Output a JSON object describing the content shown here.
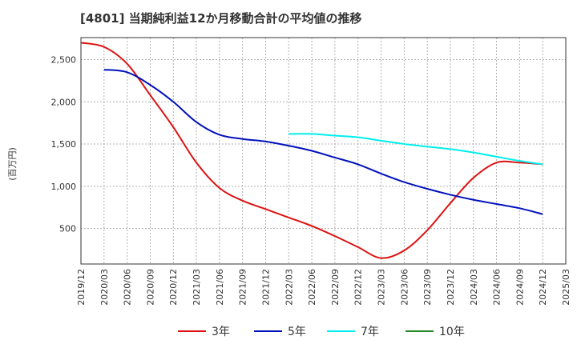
{
  "chart_data": {
    "type": "line",
    "title": "[4801]  当期純利益12か月移動合計の平均値の推移",
    "ylabel": "(百万円)",
    "xlabel": "",
    "x_ticks": [
      "2019/12",
      "2020/03",
      "2020/06",
      "2020/09",
      "2020/12",
      "2021/03",
      "2021/06",
      "2021/09",
      "2021/12",
      "2022/03",
      "2022/06",
      "2022/09",
      "2022/12",
      "2023/03",
      "2023/06",
      "2023/09",
      "2023/12",
      "2024/03",
      "2024/06",
      "2024/09",
      "2024/12",
      "2025/03"
    ],
    "y_ticks": [
      500,
      1000,
      1500,
      2000,
      2500
    ],
    "y_tick_labels": [
      "500",
      "1,000",
      "1,500",
      "2,000",
      "2,500"
    ],
    "ylim": [
      80,
      2760
    ],
    "grid": true,
    "legend_position": "bottom",
    "series": [
      {
        "name": "3年",
        "color": "#dd1111",
        "x": [
          "2019/12",
          "2020/03",
          "2020/06",
          "2020/09",
          "2020/12",
          "2021/03",
          "2021/06",
          "2021/09",
          "2021/12",
          "2022/03",
          "2022/06",
          "2022/09",
          "2022/12",
          "2023/03",
          "2023/06",
          "2023/09",
          "2023/12",
          "2024/03",
          "2024/06",
          "2024/09",
          "2024/12"
        ],
        "values": [
          2700,
          2650,
          2450,
          2080,
          1700,
          1280,
          980,
          830,
          730,
          630,
          530,
          410,
          280,
          150,
          240,
          480,
          800,
          1100,
          1280,
          1280,
          1260
        ]
      },
      {
        "name": "5年",
        "color": "#0011bb",
        "x": [
          "2020/03",
          "2020/06",
          "2020/09",
          "2020/12",
          "2021/03",
          "2021/06",
          "2021/09",
          "2021/12",
          "2022/03",
          "2022/06",
          "2022/09",
          "2022/12",
          "2023/03",
          "2023/06",
          "2023/09",
          "2023/12",
          "2024/03",
          "2024/06",
          "2024/09",
          "2024/12"
        ],
        "values": [
          2380,
          2350,
          2200,
          2000,
          1760,
          1610,
          1560,
          1530,
          1480,
          1420,
          1340,
          1260,
          1150,
          1050,
          970,
          900,
          840,
          790,
          740,
          670
        ]
      },
      {
        "name": "7年",
        "color": "#00eeee",
        "x": [
          "2022/03",
          "2022/06",
          "2022/09",
          "2022/12",
          "2023/03",
          "2023/06",
          "2023/09",
          "2023/12",
          "2024/03",
          "2024/06",
          "2024/09",
          "2024/12"
        ],
        "values": [
          1620,
          1620,
          1600,
          1580,
          1540,
          1500,
          1470,
          1440,
          1400,
          1350,
          1300,
          1260
        ]
      },
      {
        "name": "10年",
        "color": "#228822",
        "x": [],
        "values": []
      }
    ]
  }
}
